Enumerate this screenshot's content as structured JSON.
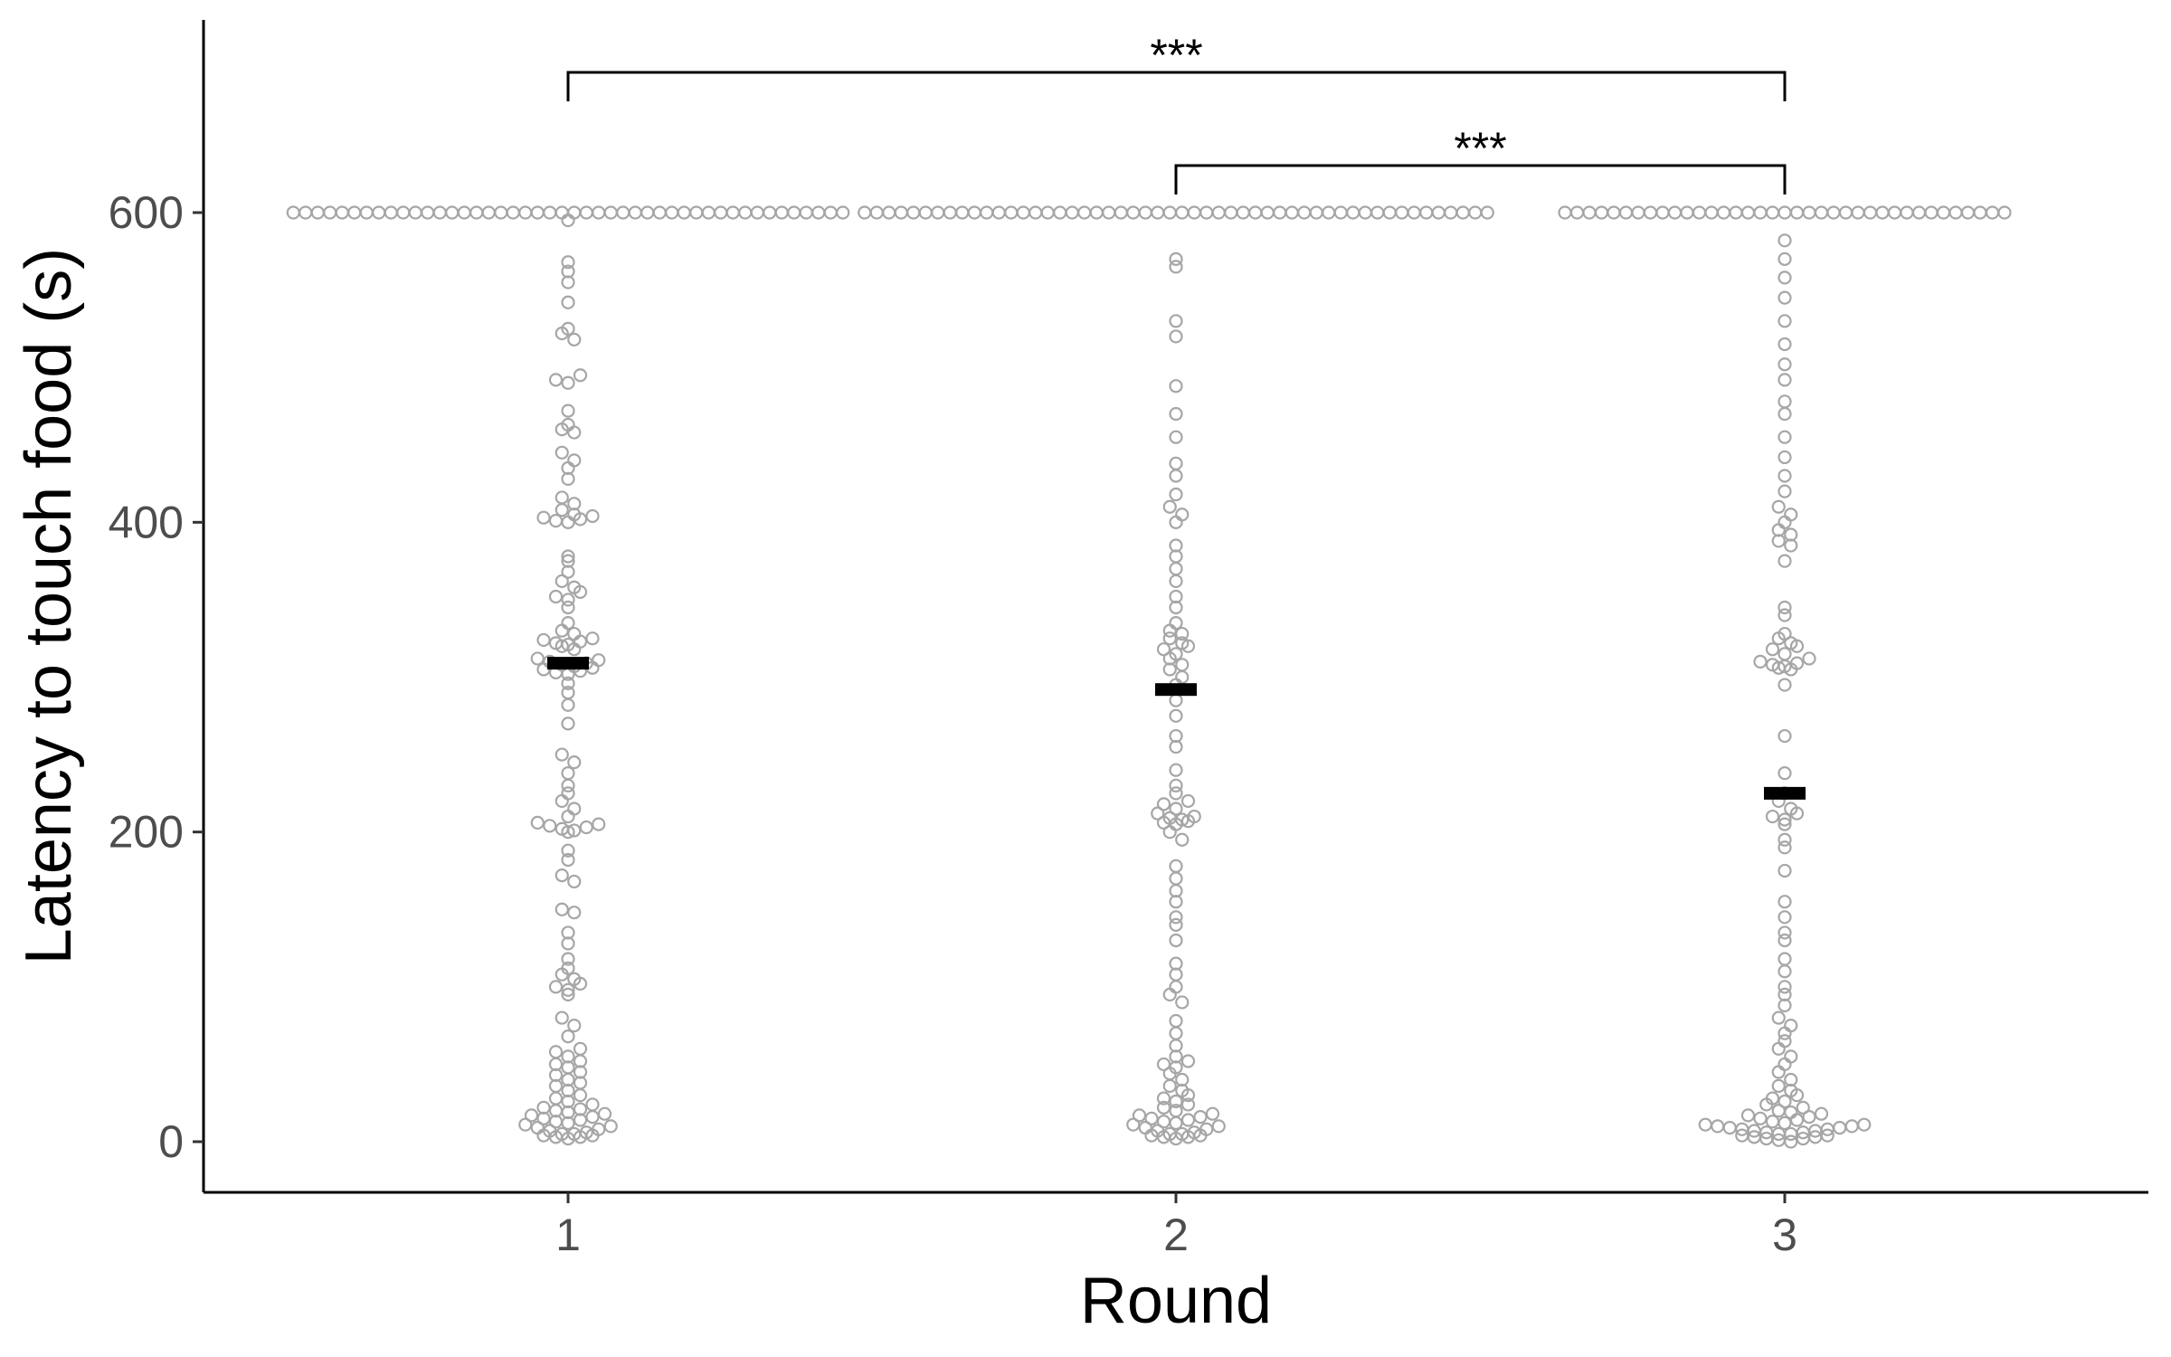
{
  "chart_data": {
    "type": "scatter",
    "subtype": "beeswarm-dotplot",
    "title": "",
    "xlabel": "Round",
    "ylabel": "Latency to touch food (s)",
    "categories": [
      "1",
      "2",
      "3"
    ],
    "ylim": [
      -55,
      720
    ],
    "yticks": [
      0,
      200,
      400,
      600
    ],
    "grid": false,
    "legend": "none",
    "point_color": "#a6a6a6",
    "median_color": "#000000",
    "medians": [
      309,
      292,
      225
    ],
    "ceiling_value": 600,
    "ceiling_counts": [
      46,
      52,
      37
    ],
    "series": [
      {
        "category": "1",
        "values": [
          2,
          3,
          3,
          4,
          4,
          5,
          5,
          6,
          7,
          8,
          9,
          10,
          11,
          12,
          13,
          14,
          15,
          16,
          17,
          18,
          19,
          20,
          21,
          22,
          24,
          26,
          28,
          30,
          33,
          36,
          38,
          40,
          43,
          45,
          48,
          50,
          52,
          55,
          58,
          60,
          68,
          75,
          80,
          95,
          98,
          100,
          102,
          105,
          108,
          112,
          118,
          128,
          135,
          148,
          150,
          168,
          172,
          182,
          188,
          200,
          201,
          202,
          203,
          204,
          205,
          206,
          210,
          215,
          220,
          225,
          230,
          238,
          245,
          250,
          270,
          282,
          290,
          296,
          302,
          303,
          304,
          305,
          306,
          307,
          308,
          309,
          310,
          311,
          312,
          318,
          320,
          321,
          322,
          323,
          324,
          325,
          328,
          330,
          335,
          345,
          350,
          352,
          355,
          358,
          362,
          368,
          375,
          378,
          400,
          401,
          402,
          403,
          404,
          405,
          408,
          412,
          416,
          428,
          435,
          440,
          445,
          458,
          460,
          463,
          472,
          490,
          492,
          495,
          518,
          522,
          525,
          542,
          555,
          562,
          568,
          595
        ]
      },
      {
        "category": "2",
        "values": [
          2,
          3,
          3,
          4,
          4,
          5,
          5,
          6,
          7,
          8,
          9,
          10,
          11,
          12,
          13,
          14,
          15,
          16,
          17,
          18,
          20,
          22,
          24,
          26,
          28,
          30,
          33,
          36,
          40,
          44,
          48,
          50,
          52,
          55,
          62,
          70,
          78,
          90,
          95,
          100,
          108,
          115,
          130,
          140,
          145,
          155,
          162,
          170,
          178,
          195,
          200,
          205,
          206,
          207,
          208,
          209,
          210,
          212,
          215,
          218,
          220,
          225,
          230,
          240,
          255,
          262,
          275,
          285,
          295,
          300,
          305,
          308,
          312,
          315,
          318,
          320,
          322,
          325,
          328,
          330,
          335,
          345,
          352,
          362,
          370,
          378,
          385,
          400,
          405,
          410,
          418,
          430,
          438,
          455,
          470,
          488,
          520,
          530,
          565,
          570
        ]
      },
      {
        "category": "3",
        "values": [
          0,
          1,
          2,
          2,
          3,
          3,
          4,
          4,
          5,
          5,
          6,
          6,
          7,
          7,
          8,
          8,
          9,
          9,
          10,
          10,
          11,
          11,
          12,
          13,
          14,
          15,
          16,
          17,
          18,
          19,
          20,
          22,
          24,
          26,
          28,
          30,
          33,
          36,
          40,
          45,
          50,
          55,
          60,
          65,
          70,
          75,
          80,
          88,
          95,
          100,
          110,
          118,
          130,
          135,
          145,
          155,
          175,
          190,
          195,
          205,
          208,
          210,
          212,
          215,
          220,
          225,
          238,
          262,
          295,
          305,
          306,
          307,
          308,
          309,
          310,
          312,
          315,
          318,
          320,
          322,
          325,
          328,
          340,
          345,
          375,
          385,
          388,
          392,
          395,
          400,
          405,
          410,
          420,
          430,
          442,
          455,
          470,
          478,
          492,
          502,
          515,
          530,
          545,
          558,
          570,
          582
        ]
      }
    ],
    "significance": [
      {
        "from": "1",
        "to": "3",
        "label": "***"
      },
      {
        "from": "2",
        "to": "3",
        "label": "***"
      }
    ]
  }
}
